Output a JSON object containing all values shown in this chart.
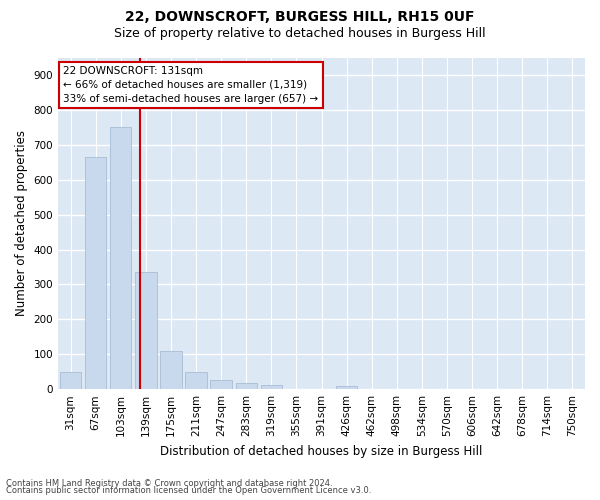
{
  "title1": "22, DOWNSCROFT, BURGESS HILL, RH15 0UF",
  "title2": "Size of property relative to detached houses in Burgess Hill",
  "xlabel": "Distribution of detached houses by size in Burgess Hill",
  "ylabel": "Number of detached properties",
  "footnote1": "Contains HM Land Registry data © Crown copyright and database right 2024.",
  "footnote2": "Contains public sector information licensed under the Open Government Licence v3.0.",
  "bar_labels": [
    "31sqm",
    "67sqm",
    "103sqm",
    "139sqm",
    "175sqm",
    "211sqm",
    "247sqm",
    "283sqm",
    "319sqm",
    "355sqm",
    "391sqm",
    "426sqm",
    "462sqm",
    "498sqm",
    "534sqm",
    "570sqm",
    "606sqm",
    "642sqm",
    "678sqm",
    "714sqm",
    "750sqm"
  ],
  "bar_values": [
    50,
    665,
    750,
    335,
    108,
    50,
    25,
    18,
    13,
    0,
    0,
    8,
    0,
    0,
    0,
    0,
    0,
    0,
    0,
    0,
    0
  ],
  "bar_color": "#c8d9ee",
  "bar_edge_color": "#aabdd6",
  "marker_line_color": "#cc0000",
  "annotation_text": "22 DOWNSCROFT: 131sqm\n← 66% of detached houses are smaller (1,319)\n33% of semi-detached houses are larger (657) →",
  "annotation_box_color": "#ffffff",
  "annotation_box_edge": "#cc0000",
  "ylim": [
    0,
    950
  ],
  "yticks": [
    0,
    100,
    200,
    300,
    400,
    500,
    600,
    700,
    800,
    900
  ],
  "bg_color": "#dde8f5",
  "fig_bg_color": "#ffffff",
  "grid_color": "#ffffff",
  "title_fontsize": 10,
  "subtitle_fontsize": 9,
  "tick_fontsize": 7.5,
  "label_fontsize": 8.5,
  "footnote_fontsize": 6,
  "annotation_fontsize": 7.5
}
